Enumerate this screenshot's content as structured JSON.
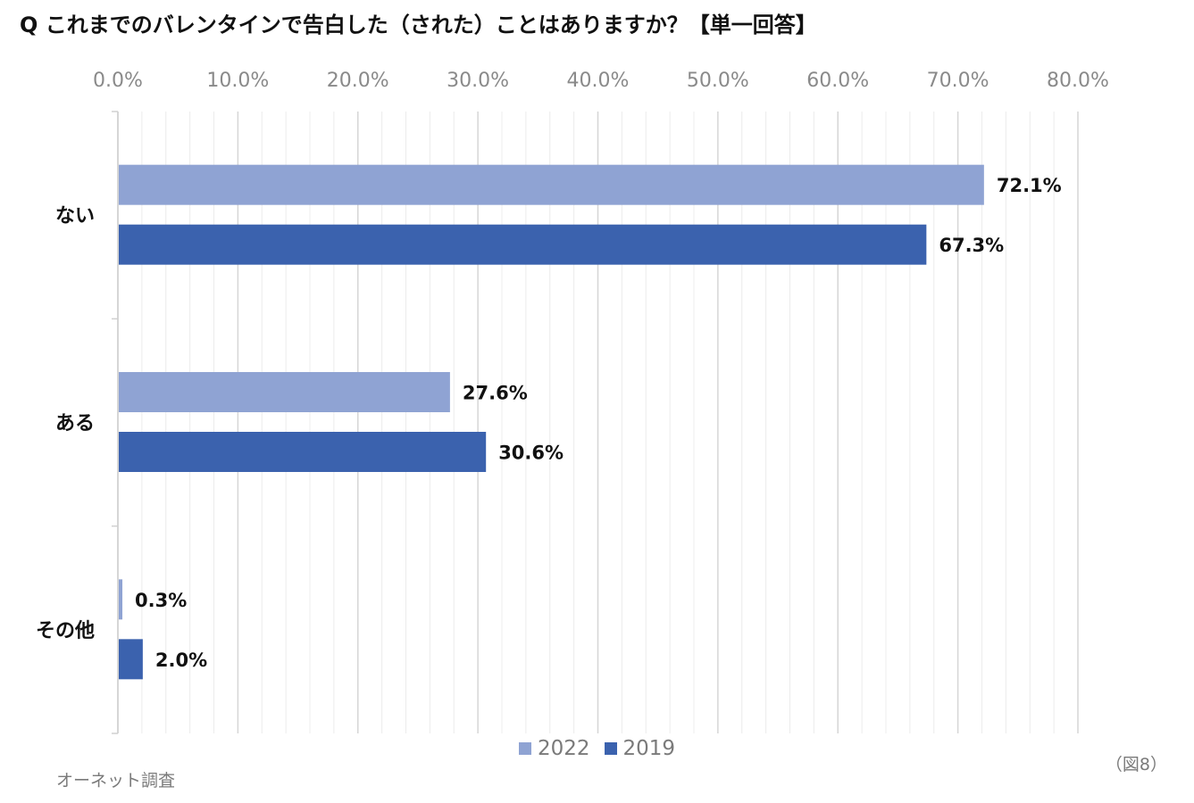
{
  "chart_data": {
    "type": "bar",
    "orientation": "horizontal",
    "title": "Q これまでのバレンタインで告白した（された）ことはありますか？【単一回答】",
    "categories": [
      "ない",
      "ある",
      "その他"
    ],
    "series": [
      {
        "name": "2022",
        "values": [
          72.1,
          27.6,
          0.3
        ],
        "labels": [
          "72.1%",
          "27.6%",
          "0.3%"
        ],
        "color": "#8FA3D3"
      },
      {
        "name": "2019",
        "values": [
          67.3,
          30.6,
          2.0
        ],
        "labels": [
          "67.3%",
          "30.6%",
          "2.0%"
        ],
        "color": "#3B62AE"
      }
    ],
    "x_ticks": [
      "0.0%",
      "10.0%",
      "20.0%",
      "30.0%",
      "40.0%",
      "50.0%",
      "60.0%",
      "70.0%",
      "80.0%"
    ],
    "xlim": [
      0,
      80
    ],
    "x_axis_position": "top",
    "grid": true,
    "legend_position": "bottom"
  },
  "source_note": "オーネット調査",
  "figure_number": "（図8）"
}
